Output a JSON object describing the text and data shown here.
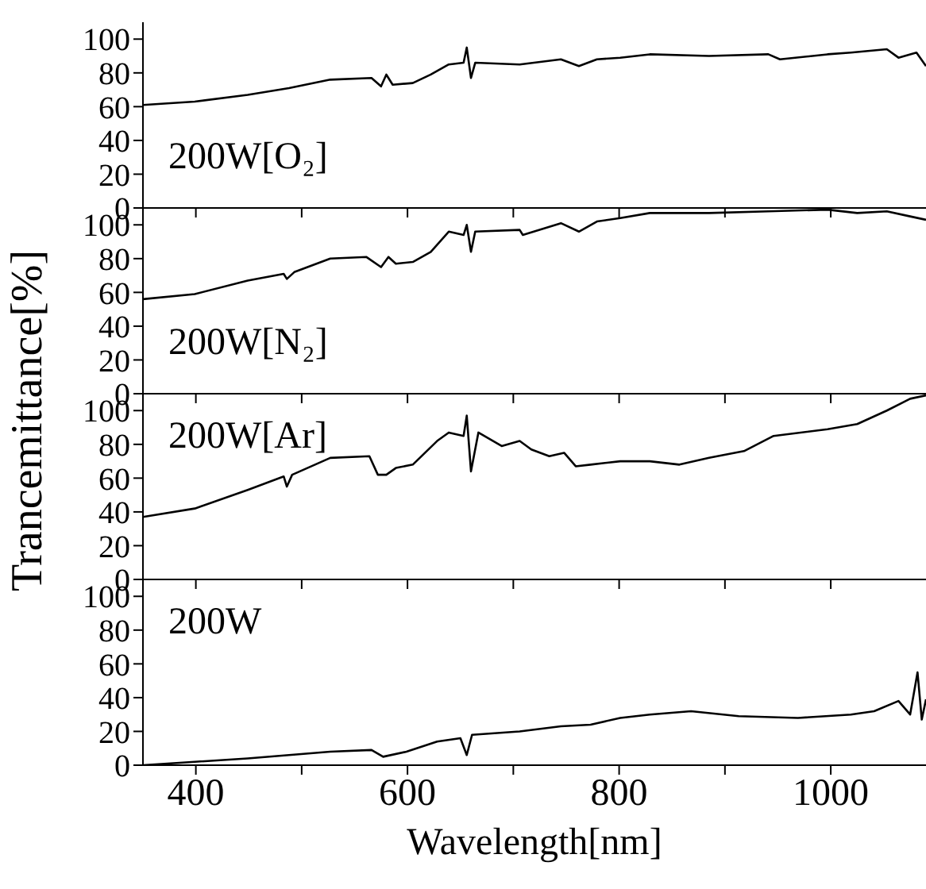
{
  "chart_data": [
    {
      "type": "line",
      "color": "#000000",
      "xlim": [
        350,
        1090
      ],
      "ylim": [
        0,
        110
      ],
      "xticks": [
        400,
        {
          "value": 500,
          "label": null
        },
        600,
        {
          "value": 700,
          "label": null
        },
        800,
        {
          "value": 900,
          "label": null
        },
        1000
      ],
      "yticks": [
        0,
        20,
        40,
        60,
        80,
        100
      ],
      "tick_labels": "y",
      "annotations": [
        "200W[O₂]"
      ],
      "x": [
        350,
        399,
        449,
        488,
        527,
        566,
        575,
        580,
        586,
        605,
        622,
        639,
        653,
        656,
        660,
        664,
        706,
        745,
        762,
        779,
        801,
        829,
        885,
        941,
        952,
        997,
        1019,
        1053,
        1064,
        1081,
        1090
      ],
      "values": [
        61,
        63,
        67,
        71,
        76,
        77,
        72,
        79,
        73,
        74,
        79,
        85,
        86,
        95,
        77,
        86,
        85,
        88,
        84,
        88,
        89,
        91,
        90,
        91,
        88,
        91,
        92,
        94,
        89,
        92,
        84
      ]
    },
    {
      "type": "line",
      "color": "#000000",
      "xlim": [
        350,
        1090
      ],
      "ylim": [
        0,
        110
      ],
      "xticks": [
        400,
        {
          "value": 500,
          "label": null
        },
        600,
        {
          "value": 700,
          "label": null
        },
        800,
        {
          "value": 900,
          "label": null
        },
        1000
      ],
      "yticks": [
        0,
        20,
        40,
        60,
        80,
        100
      ],
      "tick_labels": "y",
      "ylabel": "Trancemittance[%]",
      "annotations": [
        "200W[N₂]"
      ],
      "x": [
        350,
        399,
        449,
        483,
        486,
        493,
        527,
        561,
        575,
        582,
        589,
        605,
        622,
        639,
        653,
        656,
        660,
        664,
        706,
        709,
        745,
        762,
        779,
        801,
        829,
        885,
        941,
        997,
        1025,
        1053,
        1075,
        1090
      ],
      "values": [
        56,
        59,
        67,
        71,
        68,
        72,
        80,
        81,
        75,
        81,
        77,
        78,
        84,
        96,
        94,
        100,
        84,
        96,
        97,
        94,
        101,
        96,
        102,
        104,
        107,
        107,
        108,
        109,
        107,
        108,
        105,
        103
      ]
    },
    {
      "type": "line",
      "color": "#000000",
      "xlim": [
        350,
        1090
      ],
      "ylim": [
        0,
        110
      ],
      "xticks": [
        400,
        {
          "value": 500,
          "label": null
        },
        600,
        {
          "value": 700,
          "label": null
        },
        800,
        {
          "value": 900,
          "label": null
        },
        1000
      ],
      "yticks": [
        0,
        20,
        40,
        60,
        80,
        100
      ],
      "tick_labels": "y",
      "annotations": [
        "200W[Ar]"
      ],
      "x": [
        350,
        399,
        449,
        483,
        486,
        491,
        527,
        564,
        572,
        580,
        589,
        605,
        628,
        639,
        653,
        656,
        660,
        667,
        689,
        706,
        717,
        734,
        748,
        759,
        773,
        801,
        829,
        857,
        885,
        918,
        946,
        997,
        1025,
        1053,
        1075,
        1090
      ],
      "values": [
        37,
        42,
        53,
        61,
        55,
        62,
        72,
        73,
        62,
        62,
        66,
        68,
        82,
        87,
        85,
        97,
        64,
        87,
        79,
        82,
        77,
        73,
        75,
        67,
        68,
        70,
        70,
        68,
        72,
        76,
        85,
        89,
        92,
        100,
        107,
        109
      ]
    },
    {
      "type": "line",
      "color": "#000000",
      "xlim": [
        350,
        1090
      ],
      "ylim": [
        0,
        110
      ],
      "xticks": [
        400,
        {
          "value": 500,
          "label": null
        },
        600,
        {
          "value": 700,
          "label": null
        },
        800,
        {
          "value": 900,
          "label": null
        },
        1000
      ],
      "yticks": [
        0,
        20,
        40,
        60,
        80,
        100
      ],
      "xlabel": "Wavelength[nm]",
      "annotations": [
        "200W"
      ],
      "x": [
        350,
        399,
        449,
        488,
        527,
        566,
        577,
        599,
        628,
        650,
        656,
        661,
        706,
        745,
        773,
        801,
        829,
        868,
        913,
        969,
        1019,
        1041,
        1064,
        1075,
        1082,
        1086,
        1090
      ],
      "values": [
        0,
        2,
        4,
        6,
        8,
        9,
        5,
        8,
        14,
        16,
        6,
        18,
        20,
        23,
        24,
        28,
        30,
        32,
        29,
        28,
        30,
        32,
        38,
        30,
        55,
        27,
        39
      ]
    }
  ]
}
